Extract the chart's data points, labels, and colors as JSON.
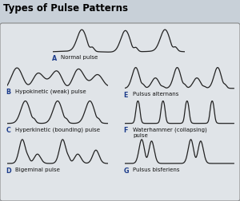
{
  "title": "Types of Pulse Patterns",
  "title_fontsize": 8.5,
  "title_fontweight": "bold",
  "bg_color": "#c8d0d8",
  "inner_bg": "#e0e4e8",
  "border_color": "#999999",
  "text_color": "#000000",
  "label_color": "#1a3a8a",
  "line_color": "#222222",
  "line_width": 0.9,
  "labels": {
    "A": "Normal pulse",
    "B": "Hypokinetic (weak) pulse",
    "C": "Hyperkinetic (bounding) pulse",
    "D": "Bigeminal pulse",
    "E": "Pulsus alternans",
    "F": "Waterhammer (collapsing)\npulse",
    "G": "Pulsus bisferiens"
  }
}
